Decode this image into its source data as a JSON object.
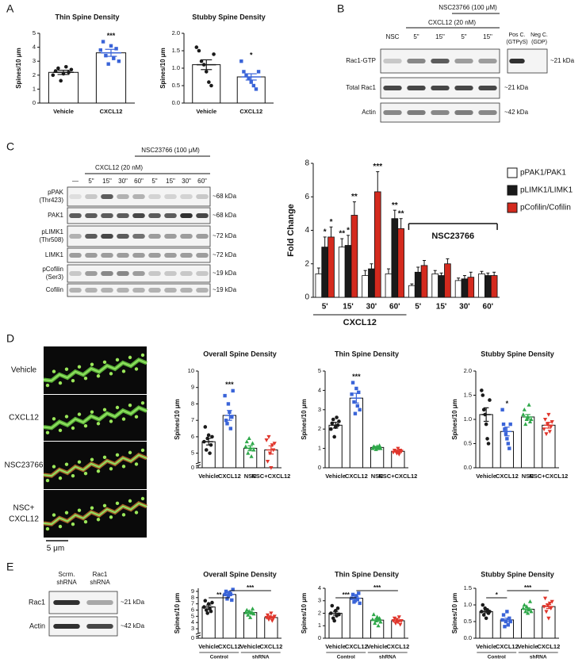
{
  "panel_labels": [
    "A",
    "B",
    "C",
    "D",
    "E"
  ],
  "blot_b": {
    "treatment": "NSC23766 (100 μM)",
    "agonist": "CXCL12 (20 nM)",
    "lanes": [
      "NSC",
      "5\"",
      "15\"",
      "5\"",
      "15\""
    ],
    "controls": [
      [
        "Pos C.",
        "(GTPγS)"
      ],
      [
        "Neg C.",
        "(GDP)"
      ]
    ],
    "rows": [
      "Rac1-GTP",
      "Total Rac1",
      "Actin"
    ],
    "sizes": [
      "~21 kDa",
      "~21 kDa",
      "~42 kDa"
    ]
  },
  "blot_c": {
    "treatment": "NSC23766 (100 μM)",
    "agonist": "CXCL12 (20 nM)",
    "lanes": [
      "—",
      "5\"",
      "15\"",
      "30\"",
      "60\"",
      "5\"",
      "15\"",
      "30\"",
      "60\""
    ],
    "rows": [
      [
        "pPAK",
        "(Thr423)"
      ],
      [
        "PAK1"
      ],
      [
        "pLIMK1",
        "(Thr508)"
      ],
      [
        "LIMK1"
      ],
      [
        "pCofilin",
        "(Ser3)"
      ],
      [
        "Cofilin"
      ]
    ],
    "sizes": [
      "~68 kDa",
      "~68 kDa",
      "~72 kDa",
      "~72 kDa",
      "~19 kDa",
      "~19 kDa"
    ]
  },
  "images_d": {
    "labels": [
      [
        "Vehicle"
      ],
      [
        "CXCL12"
      ],
      [
        "NSC23766"
      ],
      [
        "NSC+",
        "CXCL12"
      ]
    ],
    "scale_bar": "5 μm"
  },
  "blot_e": {
    "lanes": [
      [
        "Scrm.",
        "shRNA"
      ],
      [
        "Rac1",
        "shRNA"
      ]
    ],
    "rows": [
      "Rac1",
      "Actin"
    ],
    "sizes": [
      "~21 kDa",
      "~42 kDa"
    ]
  },
  "chart_data": [
    {
      "type": "bar",
      "title": "Thin Spine Density",
      "ylabel": "Spines/10 μm",
      "categories": [
        "Vehicle",
        "CXCL12"
      ],
      "values": [
        2.2,
        3.6
      ],
      "errors": [
        0.15,
        0.25
      ],
      "colors": [
        "#1a1a1a",
        "#3a64d8"
      ],
      "markers": [
        "circle",
        "square"
      ],
      "points": [
        [
          2.0,
          2.3,
          2.5,
          1.6,
          2.1,
          2.6,
          2.2,
          2.4
        ],
        [
          3.8,
          4.4,
          3.4,
          2.8,
          4.1,
          3.2,
          3.9,
          3.0
        ]
      ],
      "annotations": [
        null,
        "***"
      ],
      "ylim": [
        0,
        5
      ],
      "yticks": [
        0,
        1,
        2,
        3,
        4,
        5
      ]
    },
    {
      "type": "bar",
      "title": "Stubby Spine Density",
      "ylabel": "Spines/10 μm",
      "categories": [
        "Vehicle",
        "CXCL12"
      ],
      "values": [
        1.1,
        0.75
      ],
      "errors": [
        0.14,
        0.09
      ],
      "colors": [
        "#1a1a1a",
        "#3a64d8"
      ],
      "markers": [
        "circle",
        "square"
      ],
      "points": [
        [
          1.6,
          1.5,
          1.2,
          1.1,
          0.9,
          0.6,
          0.5,
          1.4
        ],
        [
          1.2,
          0.9,
          0.8,
          0.7,
          0.6,
          0.5,
          0.4,
          0.9
        ]
      ],
      "annotations": [
        null,
        "*"
      ],
      "ylim": [
        0,
        2
      ],
      "yticks": [
        {
          "value": 0,
          "label": "0.0"
        },
        0.5,
        {
          "value": 1,
          "label": "1.0"
        },
        1.5,
        {
          "value": 2,
          "label": "2.0"
        }
      ]
    },
    {
      "type": "bar",
      "ylabel": "Fold Change",
      "xlabel": "CXCL12",
      "categories": [
        "5'",
        "15'",
        "30'",
        "60'",
        "5'",
        "15'",
        "30'",
        "60'"
      ],
      "series": [
        {
          "name": "pPAK1/PAK1",
          "color": "#ffffff",
          "values": [
            1.4,
            3.0,
            1.3,
            1.4,
            0.7,
            1.4,
            1.0,
            1.4
          ],
          "errors": [
            0.35,
            0.5,
            0.3,
            0.3,
            0.1,
            0.2,
            0.15,
            0.15
          ],
          "annotations": [
            null,
            "**",
            null,
            null,
            null,
            null,
            null,
            null
          ]
        },
        {
          "name": "pLIMK1/LIMK1",
          "color": "#1a1a1a",
          "values": [
            3.0,
            3.1,
            1.7,
            4.7,
            1.5,
            1.3,
            1.1,
            1.3
          ],
          "errors": [
            0.6,
            0.6,
            0.3,
            0.5,
            0.3,
            0.15,
            0.2,
            0.15
          ],
          "annotations": [
            "*",
            "*",
            null,
            "**",
            null,
            null,
            null,
            null
          ]
        },
        {
          "name": "pCofilin/Cofilin",
          "color": "#d42a1e",
          "values": [
            3.6,
            4.9,
            6.3,
            4.1,
            1.9,
            2.0,
            1.2,
            1.3
          ],
          "errors": [
            0.6,
            0.8,
            1.2,
            0.6,
            0.3,
            0.3,
            0.3,
            0.2
          ],
          "annotations": [
            "*",
            "**",
            "***",
            "**",
            null,
            null,
            null,
            null
          ]
        }
      ],
      "bracket": {
        "text": "NSC23766",
        "from": 4,
        "to": 7
      },
      "legend": "right",
      "ylim": [
        0,
        8
      ],
      "yticks": [
        0,
        2,
        4,
        6,
        8
      ]
    },
    {
      "type": "bar",
      "title": "Overall Spine Density",
      "ylabel": "Spines/10 μm",
      "categories": [
        "Vehicle",
        "CXCL12",
        "NSC",
        "NSC+CXCL12"
      ],
      "values": [
        5.7,
        7.3,
        5.3,
        5.2
      ],
      "errors": [
        0.2,
        0.3,
        0.15,
        0.25
      ],
      "colors": [
        "#1a1a1a",
        "#3a64d8",
        "#2fa84a",
        "#e0352b"
      ],
      "markers": [
        "circle",
        "square",
        "triangle",
        "triangle-down"
      ],
      "points": [
        [
          5.7,
          6.6,
          5.2,
          5.9,
          6.1,
          5.0,
          5.5,
          6.0
        ],
        [
          8.5,
          7.0,
          6.8,
          8.0,
          7.5,
          6.5,
          7.2,
          8.8
        ],
        [
          5.4,
          5.7,
          5.0,
          5.9,
          5.3,
          4.8,
          5.6,
          5.2
        ],
        [
          5.8,
          4.5,
          6.0,
          5.0,
          4.3,
          5.5,
          5.2,
          5.6
        ]
      ],
      "annotations": [
        null,
        "***",
        null,
        null
      ],
      "axis_break": true,
      "ylim": [
        4.5,
        10
      ],
      "yticks": [
        0,
        5,
        6,
        7,
        8,
        9,
        10
      ]
    },
    {
      "type": "bar",
      "title": "Thin Spine Density",
      "ylabel": "Spines/10 μm",
      "categories": [
        "Vehicle",
        "CXCL12",
        "NSC",
        "NSC+CXCL12"
      ],
      "values": [
        2.2,
        3.6,
        1.05,
        0.85
      ],
      "errors": [
        0.15,
        0.25,
        0.05,
        0.05
      ],
      "colors": [
        "#1a1a1a",
        "#3a64d8",
        "#2fa84a",
        "#e0352b"
      ],
      "markers": [
        "circle",
        "square",
        "triangle",
        "triangle-down"
      ],
      "points": [
        [
          2.0,
          2.3,
          2.5,
          1.6,
          2.1,
          2.6,
          2.2,
          2.4
        ],
        [
          3.8,
          4.4,
          3.4,
          2.8,
          4.1,
          3.2,
          3.9,
          3.0
        ],
        [
          1.0,
          1.1,
          1.05,
          0.95,
          1.1,
          1.0,
          1.15,
          1.0
        ],
        [
          0.8,
          0.9,
          0.85,
          0.75,
          1.0,
          0.7,
          0.9,
          0.85
        ]
      ],
      "annotations": [
        null,
        "***",
        null,
        null
      ],
      "ylim": [
        0,
        5
      ],
      "yticks": [
        0,
        1,
        2,
        3,
        4,
        5
      ]
    },
    {
      "type": "bar",
      "title": "Stubby Spine Density",
      "ylabel": "Spines/10 μm",
      "categories": [
        "Vehicle",
        "CXCL12",
        "NSC",
        "NSC+CXCL12"
      ],
      "values": [
        1.1,
        0.75,
        1.05,
        0.88
      ],
      "errors": [
        0.14,
        0.09,
        0.05,
        0.06
      ],
      "colors": [
        "#1a1a1a",
        "#3a64d8",
        "#2fa84a",
        "#e0352b"
      ],
      "markers": [
        "circle",
        "square",
        "triangle",
        "triangle-down"
      ],
      "points": [
        [
          1.6,
          1.5,
          1.2,
          1.1,
          0.9,
          0.6,
          0.5,
          1.4
        ],
        [
          1.2,
          0.9,
          0.8,
          0.7,
          0.6,
          0.5,
          0.4,
          0.9
        ],
        [
          1.1,
          1.2,
          0.9,
          1.0,
          1.05,
          1.3,
          0.95,
          1.0
        ],
        [
          0.8,
          1.0,
          0.7,
          0.9,
          1.1,
          0.75,
          0.85,
          0.95
        ]
      ],
      "annotations": [
        null,
        "*",
        null,
        null
      ],
      "ylim": [
        0,
        2
      ],
      "yticks": [
        {
          "value": 0,
          "label": "0.0"
        },
        0.5,
        {
          "value": 1,
          "label": "1.0"
        },
        1.5,
        {
          "value": 2,
          "label": "2.0"
        }
      ]
    },
    {
      "type": "bar",
      "title": "Overall Spine Density",
      "ylabel": "Spines/10 μm",
      "categories": [
        "Vehicle",
        "CXCL12",
        "Vehicle",
        "CXCL12"
      ],
      "values": [
        6.5,
        8.5,
        5.6,
        4.8
      ],
      "errors": [
        0.3,
        0.2,
        0.2,
        0.15
      ],
      "colors": [
        "#1a1a1a",
        "#3a64d8",
        "#2fa84a",
        "#e0352b"
      ],
      "markers": [
        "circle",
        "square",
        "triangle",
        "triangle-down"
      ],
      "points": [
        [
          6.5,
          7.5,
          6.0,
          5.5,
          7.0,
          6.2,
          5.8,
          7.2
        ],
        [
          8.5,
          9.0,
          7.8,
          8.2,
          8.8,
          8.6,
          7.6,
          9.3
        ],
        [
          5.6,
          6.0,
          5.2,
          5.8,
          4.8,
          5.5,
          6.2,
          5.4
        ],
        [
          4.8,
          5.2,
          4.5,
          4.9,
          5.5,
          4.3,
          4.7,
          5.0
        ]
      ],
      "brackets": [
        {
          "from": 0,
          "to": 1,
          "text": "**"
        },
        {
          "from": 1,
          "to": 3,
          "text": "***"
        }
      ],
      "groups": [
        {
          "label": "Control",
          "from": 0,
          "to": 1
        },
        {
          "label": "shRNA",
          "from": 2,
          "to": 3
        }
      ],
      "axis_break": true,
      "ylim": [
        2.5,
        9.5
      ],
      "yticks": [
        0,
        3,
        4,
        5,
        6,
        7,
        8,
        9
      ]
    },
    {
      "type": "bar",
      "title": "Thin Spine Density",
      "ylabel": "Spines/10 μm",
      "categories": [
        "Vehicle",
        "CXCL12",
        "Vehicle",
        "CXCL12"
      ],
      "values": [
        2.0,
        3.2,
        1.45,
        1.4
      ],
      "errors": [
        0.15,
        0.1,
        0.1,
        0.07
      ],
      "colors": [
        "#1a1a1a",
        "#3a64d8",
        "#2fa84a",
        "#e0352b"
      ],
      "markers": [
        "circle",
        "square",
        "triangle",
        "triangle-down"
      ],
      "points": [
        [
          2.0,
          2.6,
          1.6,
          1.4,
          2.2,
          1.8,
          2.4,
          1.9
        ],
        [
          3.2,
          3.5,
          2.9,
          3.0,
          3.4,
          3.1,
          3.6,
          2.8
        ],
        [
          1.5,
          1.9,
          1.2,
          1.4,
          1.7,
          1.0,
          1.6,
          1.3
        ],
        [
          1.4,
          1.6,
          1.2,
          1.5,
          1.3,
          1.7,
          1.1,
          1.4
        ]
      ],
      "brackets": [
        {
          "from": 0,
          "to": 1,
          "text": "***"
        },
        {
          "from": 1,
          "to": 3,
          "text": "***"
        }
      ],
      "groups": [
        {
          "label": "Control",
          "from": 0,
          "to": 1
        },
        {
          "label": "shRNA",
          "from": 2,
          "to": 3
        }
      ],
      "ylim": [
        0,
        4
      ],
      "yticks": [
        0,
        1,
        2,
        3,
        4
      ]
    },
    {
      "type": "bar",
      "title": "Stubby Spine Density",
      "ylabel": "Spines/10 μm",
      "categories": [
        "Vehicle",
        "CXCL12",
        "Vehicle",
        "CXCL12"
      ],
      "values": [
        0.8,
        0.55,
        0.87,
        0.95
      ],
      "errors": [
        0.04,
        0.05,
        0.04,
        0.06
      ],
      "colors": [
        "#1a1a1a",
        "#3a64d8",
        "#2fa84a",
        "#e0352b"
      ],
      "markers": [
        "circle",
        "square",
        "triangle",
        "triangle-down"
      ],
      "points": [
        [
          0.8,
          1.0,
          0.7,
          0.9,
          0.6,
          0.85,
          0.75,
          0.8
        ],
        [
          0.55,
          0.7,
          0.35,
          0.5,
          0.8,
          0.4,
          0.6,
          0.5
        ],
        [
          0.9,
          1.0,
          0.8,
          0.95,
          0.75,
          0.85,
          1.1,
          0.8
        ],
        [
          0.95,
          1.2,
          0.8,
          1.0,
          0.6,
          1.05,
          0.9,
          1.1
        ]
      ],
      "brackets": [
        {
          "from": 0,
          "to": 1,
          "text": "*"
        },
        {
          "from": 1,
          "to": 3,
          "text": "***"
        }
      ],
      "groups": [
        {
          "label": "Control",
          "from": 0,
          "to": 1
        },
        {
          "label": "shRNA",
          "from": 2,
          "to": 3
        }
      ],
      "ylim": [
        0,
        1.5
      ],
      "yticks": [
        {
          "value": 0,
          "label": "0.0"
        },
        0.5,
        {
          "value": 1,
          "label": "1.0"
        },
        1.5
      ]
    }
  ]
}
